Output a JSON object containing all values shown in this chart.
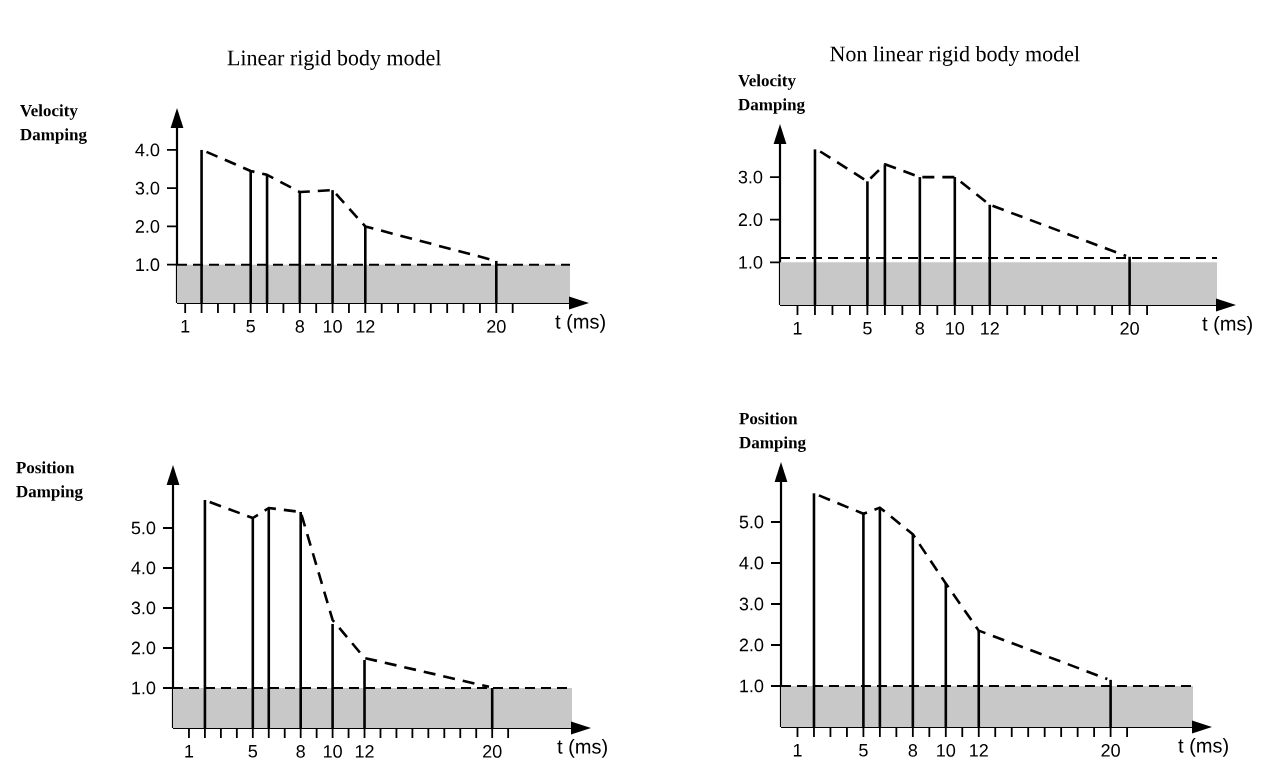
{
  "chart_data": [
    {
      "type": "bar",
      "title": "Linear rigid body model",
      "ylabel": "Velocity Damping",
      "xlabel": "t  (ms)",
      "x": [
        2,
        5,
        6,
        8,
        10,
        12,
        20
      ],
      "xlim": [
        0.5,
        24.5
      ],
      "ylim": [
        0,
        4.6
      ],
      "xticks": [
        1,
        {
          "value": 2,
          "label": null
        },
        {
          "value": 3,
          "label": null
        },
        {
          "value": 4,
          "label": null
        },
        5,
        {
          "value": 6,
          "label": null
        },
        {
          "value": 7,
          "label": null
        },
        8,
        {
          "value": 9,
          "label": null
        },
        10,
        {
          "value": 11,
          "label": null
        },
        12,
        {
          "value": 13,
          "label": null
        },
        {
          "value": 14,
          "label": null
        },
        {
          "value": 15,
          "label": null
        },
        {
          "value": 16,
          "label": null
        },
        {
          "value": 17,
          "label": null
        },
        {
          "value": 18,
          "label": null
        },
        {
          "value": 19,
          "label": null
        },
        20,
        {
          "value": 21,
          "label": null
        }
      ],
      "yticks": [
        {
          "value": 1,
          "label": "1.0"
        },
        {
          "value": 2,
          "label": "2.0"
        },
        {
          "value": 3,
          "label": "3.0"
        },
        {
          "value": 4,
          "label": "4.0"
        }
      ],
      "marker": "none",
      "series": [
        {
          "color": "#000000",
          "values": [
            4.0,
            3.45,
            3.35,
            2.9,
            2.95,
            2.0,
            1.1
          ]
        },
        {
          "type": "line",
          "color": "#000000",
          "line_style": "dashed",
          "x": [
            2.3,
            5,
            6,
            8,
            10,
            12,
            19.8
          ],
          "values": [
            3.95,
            3.45,
            3.35,
            2.9,
            2.95,
            2.0,
            1.12
          ]
        }
      ],
      "ref_lines": [
        {
          "axis": "y",
          "value": 1.0,
          "color": "#000000",
          "line_style": "dashed"
        }
      ],
      "bands": [
        {
          "axis": "y",
          "from": 0,
          "to": 1.0,
          "color": "#c8c8c8"
        }
      ]
    },
    {
      "type": "bar",
      "title": "Non linear rigid body model",
      "ylabel": "Velocity Damping",
      "xlabel": "t  (ms)",
      "x": [
        2,
        5,
        6,
        8,
        10,
        12,
        20
      ],
      "xlim": [
        0,
        25
      ],
      "ylim": [
        0,
        3.8
      ],
      "xticks": [
        1,
        {
          "value": 2,
          "label": null
        },
        {
          "value": 3,
          "label": null
        },
        {
          "value": 4,
          "label": null
        },
        5,
        {
          "value": 6,
          "label": null
        },
        {
          "value": 7,
          "label": null
        },
        8,
        {
          "value": 9,
          "label": null
        },
        10,
        {
          "value": 11,
          "label": null
        },
        12,
        {
          "value": 13,
          "label": null
        },
        {
          "value": 14,
          "label": null
        },
        {
          "value": 15,
          "label": null
        },
        {
          "value": 16,
          "label": null
        },
        {
          "value": 17,
          "label": null
        },
        {
          "value": 18,
          "label": null
        },
        {
          "value": 19,
          "label": null
        },
        20,
        {
          "value": 21,
          "label": null
        }
      ],
      "yticks": [
        {
          "value": 1,
          "label": "1.0"
        },
        {
          "value": 2,
          "label": "2.0"
        },
        {
          "value": 3,
          "label": "3.0"
        }
      ],
      "marker": "none",
      "series": [
        {
          "color": "#000000",
          "values": [
            3.65,
            2.9,
            3.3,
            3.0,
            3.0,
            2.35,
            1.13
          ]
        },
        {
          "type": "line",
          "color": "#000000",
          "line_style": "dashed",
          "x": [
            2.3,
            5,
            6,
            8,
            10,
            12,
            19.8
          ],
          "values": [
            3.6,
            2.9,
            3.3,
            3.0,
            3.0,
            2.35,
            1.15
          ]
        }
      ],
      "ref_lines": [
        {
          "axis": "y",
          "value": 1.1,
          "color": "#000000",
          "line_style": "dashed"
        }
      ],
      "bands": [
        {
          "axis": "y",
          "from": 0,
          "to": 1.0,
          "color": "#c8c8c8"
        }
      ]
    },
    {
      "type": "bar",
      "ylabel": "Position Damping",
      "xlabel": "t  (ms)",
      "x": [
        2,
        5,
        6,
        8,
        10,
        12,
        20
      ],
      "xlim": [
        0,
        25
      ],
      "ylim": [
        0,
        6.1
      ],
      "xticks": [
        1,
        {
          "value": 2,
          "label": null
        },
        {
          "value": 3,
          "label": null
        },
        {
          "value": 4,
          "label": null
        },
        5,
        {
          "value": 6,
          "label": null
        },
        {
          "value": 7,
          "label": null
        },
        8,
        {
          "value": 9,
          "label": null
        },
        10,
        {
          "value": 11,
          "label": null
        },
        12,
        {
          "value": 13,
          "label": null
        },
        {
          "value": 14,
          "label": null
        },
        {
          "value": 15,
          "label": null
        },
        {
          "value": 16,
          "label": null
        },
        {
          "value": 17,
          "label": null
        },
        {
          "value": 18,
          "label": null
        },
        {
          "value": 19,
          "label": null
        },
        20,
        {
          "value": 21,
          "label": null
        }
      ],
      "yticks": [
        {
          "value": 1,
          "label": "1.0"
        },
        {
          "value": 2,
          "label": "2.0"
        },
        {
          "value": 3,
          "label": "3.0"
        },
        {
          "value": 4,
          "label": "4.0"
        },
        {
          "value": 5,
          "label": "5.0"
        }
      ],
      "marker": "none",
      "series": [
        {
          "color": "#000000",
          "values": [
            5.7,
            5.25,
            5.5,
            5.4,
            2.6,
            1.7,
            1.0
          ]
        },
        {
          "type": "line",
          "color": "#000000",
          "line_style": "dashed",
          "x": [
            2.3,
            5,
            6,
            8,
            10,
            12,
            19.8
          ],
          "values": [
            5.65,
            5.25,
            5.5,
            5.4,
            2.7,
            1.75,
            1.03
          ]
        }
      ],
      "ref_lines": [
        {
          "axis": "y",
          "value": 1.0,
          "color": "#000000",
          "line_style": "dashed"
        }
      ],
      "bands": [
        {
          "axis": "y",
          "from": 0,
          "to": 1.0,
          "color": "#c8c8c8"
        }
      ]
    },
    {
      "type": "bar",
      "ylabel": "Position Damping",
      "xlabel": "t  (ms)",
      "x": [
        2,
        5,
        6,
        8,
        10,
        12,
        20
      ],
      "xlim": [
        0,
        25
      ],
      "ylim": [
        0,
        6.0
      ],
      "xticks": [
        1,
        {
          "value": 2,
          "label": null
        },
        {
          "value": 3,
          "label": null
        },
        {
          "value": 4,
          "label": null
        },
        5,
        {
          "value": 6,
          "label": null
        },
        {
          "value": 7,
          "label": null
        },
        8,
        {
          "value": 9,
          "label": null
        },
        10,
        {
          "value": 11,
          "label": null
        },
        12,
        {
          "value": 13,
          "label": null
        },
        {
          "value": 14,
          "label": null
        },
        {
          "value": 15,
          "label": null
        },
        {
          "value": 16,
          "label": null
        },
        {
          "value": 17,
          "label": null
        },
        {
          "value": 18,
          "label": null
        },
        {
          "value": 19,
          "label": null
        },
        20,
        {
          "value": 21,
          "label": null
        }
      ],
      "yticks": [
        {
          "value": 1,
          "label": "1.0"
        },
        {
          "value": 2,
          "label": "2.0"
        },
        {
          "value": 3,
          "label": "3.0"
        },
        {
          "value": 4,
          "label": "4.0"
        },
        {
          "value": 5,
          "label": "5.0"
        }
      ],
      "marker": "none",
      "series": [
        {
          "color": "#000000",
          "values": [
            5.7,
            5.2,
            5.35,
            4.7,
            3.5,
            2.35,
            1.15
          ]
        },
        {
          "type": "line",
          "color": "#000000",
          "line_style": "dashed",
          "x": [
            2.3,
            5,
            6,
            8,
            10,
            12,
            19.8
          ],
          "values": [
            5.65,
            5.2,
            5.35,
            4.7,
            3.5,
            2.35,
            1.17
          ]
        }
      ],
      "ref_lines": [
        {
          "axis": "y",
          "value": 1.0,
          "color": "#000000",
          "line_style": "dashed"
        }
      ],
      "bands": [
        {
          "axis": "y",
          "from": 0,
          "to": 1.0,
          "color": "#c8c8c8"
        }
      ]
    }
  ]
}
